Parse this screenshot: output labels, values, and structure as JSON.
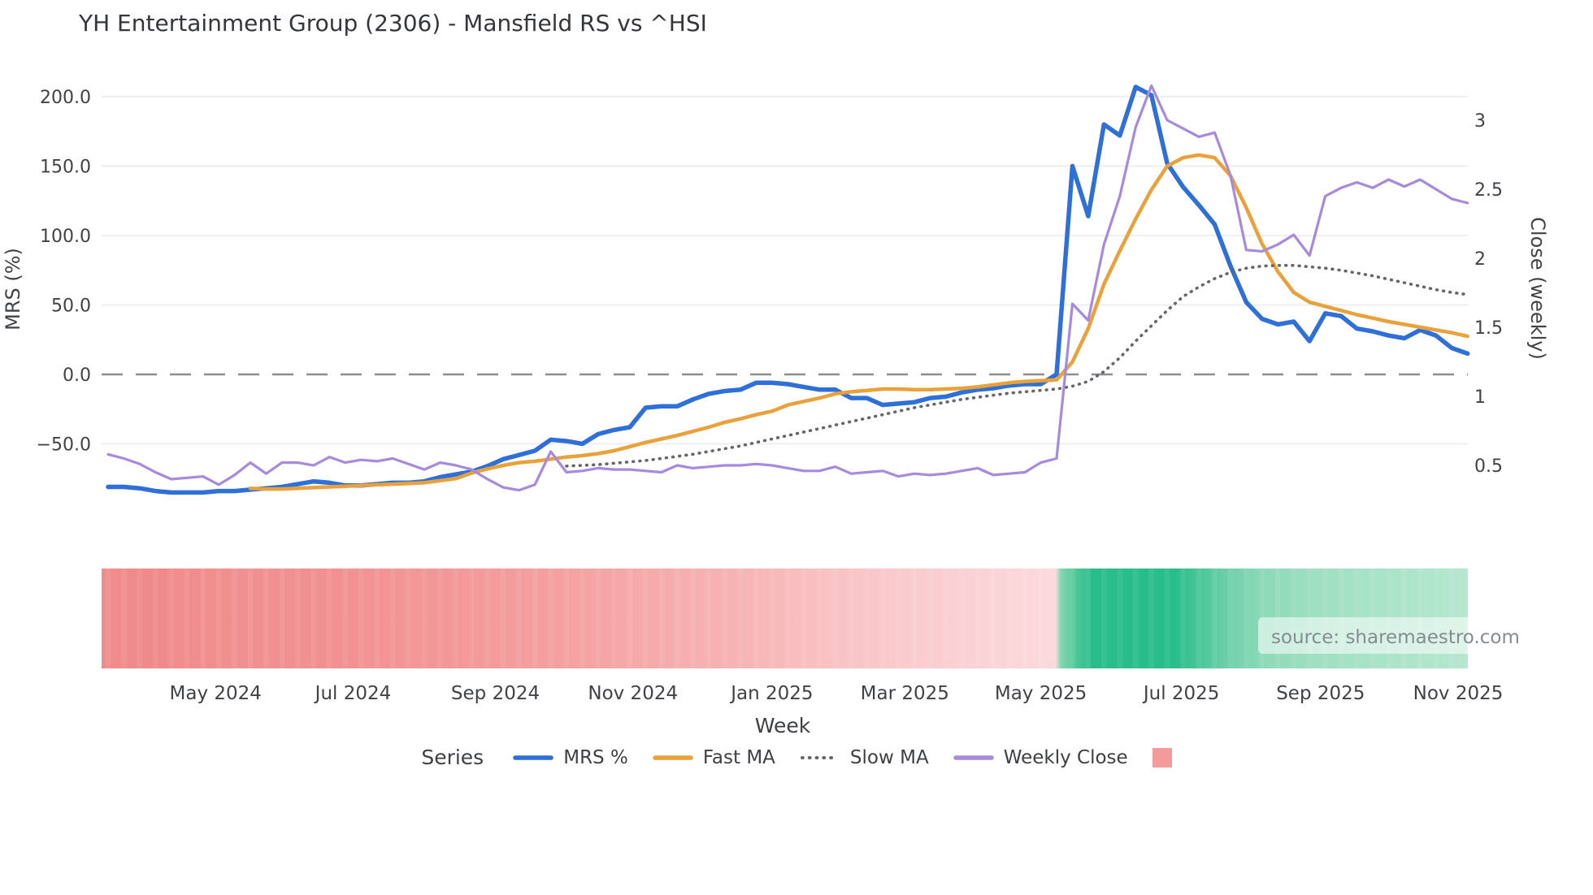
{
  "title": "YH Entertainment Group (2306) - Mansfield RS vs ^HSI",
  "source_note": "source: sharemaestro.com",
  "colors": {
    "mrs_line": "#2f6fd8",
    "fast_ma_line": "#e9a23b",
    "slow_ma_line": "#63666a",
    "weekly_close_line": "#a68ade",
    "zero_dash_line": "#8a8e93",
    "gridline": "#ebedf0",
    "tick_text": "#3f4347",
    "title_text": "#33373b",
    "source_text": "#858c91",
    "band_legend_swatch": "#f49a9a"
  },
  "legend": {
    "label": "Series",
    "items": [
      {
        "label": "MRS %",
        "swatch": "line-solid",
        "color": "#2f6fd8"
      },
      {
        "label": "Fast MA",
        "swatch": "line-solid",
        "color": "#e9a23b"
      },
      {
        "label": "Slow MA",
        "swatch": "line-dotted",
        "color": "#63666a"
      },
      {
        "label": "Weekly Close",
        "swatch": "line-solid",
        "color": "#a68ade"
      },
      {
        "label": "",
        "swatch": "square",
        "color": "#f49a9a"
      }
    ]
  },
  "chart_data": {
    "type": "line",
    "title": "YH Entertainment Group (2306) - Mansfield RS vs ^HSI",
    "xlabel": "Week",
    "x_unit": "week_index",
    "weeks": 87,
    "x_ticks": [
      {
        "label": "May 2024",
        "week": 6.8
      },
      {
        "label": "Jul 2024",
        "week": 15.5
      },
      {
        "label": "Sep 2024",
        "week": 24.5
      },
      {
        "label": "Nov 2024",
        "week": 33.2
      },
      {
        "label": "Jan 2025",
        "week": 42.0
      },
      {
        "label": "Mar 2025",
        "week": 50.4
      },
      {
        "label": "May 2025",
        "week": 59.0
      },
      {
        "label": "Jul 2025",
        "week": 67.9
      },
      {
        "label": "Sep 2025",
        "week": 76.7
      },
      {
        "label": "Nov 2025",
        "week": 85.4
      }
    ],
    "left_axis": {
      "label": "MRS (%)",
      "range": [
        -116,
        211
      ],
      "zero_reference_line": true,
      "ticks": [
        {
          "label": "200.0",
          "value": 200
        },
        {
          "label": "150.0",
          "value": 150
        },
        {
          "label": "100.0",
          "value": 100
        },
        {
          "label": "50.0",
          "value": 50
        },
        {
          "label": "0.0",
          "value": 0
        },
        {
          "label": "−50.0",
          "value": -50
        }
      ]
    },
    "right_axis": {
      "label": "Close (weekly)",
      "range": [
        0,
        3.28
      ],
      "ticks": [
        {
          "label": "3",
          "value": 3
        },
        {
          "label": "2.5",
          "value": 2.5
        },
        {
          "label": "2",
          "value": 2
        },
        {
          "label": "1.5",
          "value": 1.5
        },
        {
          "label": "1",
          "value": 1
        },
        {
          "label": "0.5",
          "value": 0.5
        }
      ]
    },
    "series": [
      {
        "name": "MRS %",
        "axis": "left",
        "style": "solid",
        "color": "#2f6fd8",
        "width": 5.5,
        "values": [
          -81,
          -81,
          -82,
          -84,
          -85,
          -85,
          -85,
          -84,
          -84,
          -83,
          -82,
          -81,
          -79,
          -77,
          -78,
          -80,
          -80,
          -79,
          -78,
          -78,
          -77,
          -74,
          -72,
          -70,
          -66,
          -61,
          -58,
          -55,
          -47,
          -48,
          -50,
          -43,
          -40,
          -38,
          -24,
          -23,
          -23,
          -18,
          -14,
          -12,
          -11,
          -6,
          -6,
          -7,
          -9,
          -11,
          -11,
          -17,
          -17,
          -22,
          -21,
          -20,
          -17,
          -16,
          -13,
          -11,
          -10,
          -8,
          -7,
          -7,
          0,
          150,
          114,
          180,
          172,
          207,
          201,
          152,
          135,
          122,
          108,
          78,
          52,
          40,
          36,
          38,
          24,
          44,
          42,
          33,
          31,
          28,
          26,
          32,
          28,
          19,
          15
        ]
      },
      {
        "name": "Fast MA",
        "axis": "left",
        "style": "solid",
        "color": "#e9a23b",
        "width": 4.5,
        "values": [
          null,
          null,
          null,
          null,
          null,
          null,
          null,
          null,
          null,
          -82,
          -82.5,
          -82.5,
          -82,
          -81.5,
          -81,
          -80.5,
          -80,
          -79.5,
          -79,
          -78.5,
          -78,
          -76.5,
          -75,
          -71,
          -68,
          -65.5,
          -63.5,
          -62.5,
          -61,
          -59.5,
          -58.5,
          -57,
          -55,
          -52,
          -49,
          -46.5,
          -44,
          -41,
          -38,
          -34.5,
          -32,
          -29,
          -26.5,
          -22,
          -19.5,
          -17,
          -14,
          -12.5,
          -11.5,
          -10.5,
          -10.5,
          -11,
          -11,
          -10.5,
          -10,
          -9,
          -7.5,
          -6,
          -5,
          -4.5,
          -4,
          9,
          33,
          65,
          89,
          112,
          133,
          150,
          156,
          158,
          156,
          143,
          120,
          94,
          74,
          59,
          52,
          49,
          46,
          43,
          40.5,
          38,
          36,
          34,
          32,
          30,
          27.5
        ]
      },
      {
        "name": "Slow MA",
        "axis": "left",
        "style": "dotted",
        "color": "#63666a",
        "width": 3.6,
        "values": [
          null,
          null,
          null,
          null,
          null,
          null,
          null,
          null,
          null,
          null,
          null,
          null,
          null,
          null,
          null,
          null,
          null,
          null,
          null,
          null,
          null,
          null,
          null,
          null,
          null,
          null,
          null,
          null,
          null,
          -66,
          -65.5,
          -65,
          -64,
          -63,
          -62,
          -60.5,
          -59,
          -57.5,
          -55.5,
          -53.5,
          -51.5,
          -49,
          -46.5,
          -44,
          -41.5,
          -39,
          -36.5,
          -34,
          -31.5,
          -29,
          -26.5,
          -24,
          -22,
          -20,
          -18,
          -16.5,
          -15,
          -13.5,
          -12.5,
          -11.5,
          -10.5,
          -8.5,
          -5,
          2,
          12,
          24,
          35,
          46,
          56,
          63,
          69,
          73.5,
          76.5,
          78,
          78.5,
          78.5,
          77.5,
          76.5,
          75,
          73,
          71,
          68.5,
          66,
          63.5,
          61,
          59,
          57.5
        ]
      },
      {
        "name": "Weekly Close",
        "axis": "right",
        "style": "solid",
        "color": "#a68ade",
        "width": 3.2,
        "values": [
          0.58,
          0.55,
          0.51,
          0.45,
          0.4,
          0.41,
          0.42,
          0.36,
          0.43,
          0.52,
          0.44,
          0.52,
          0.52,
          0.5,
          0.56,
          0.52,
          0.54,
          0.53,
          0.55,
          0.51,
          0.47,
          0.52,
          0.5,
          0.47,
          0.4,
          0.34,
          0.32,
          0.36,
          0.6,
          0.45,
          0.46,
          0.48,
          0.47,
          0.47,
          0.46,
          0.45,
          0.5,
          0.48,
          0.49,
          0.5,
          0.5,
          0.51,
          0.5,
          0.48,
          0.46,
          0.46,
          0.49,
          0.44,
          0.45,
          0.46,
          0.42,
          0.44,
          0.43,
          0.44,
          0.46,
          0.48,
          0.43,
          0.44,
          0.45,
          0.52,
          0.55,
          1.67,
          1.55,
          2.1,
          2.45,
          2.95,
          3.25,
          3.0,
          2.94,
          2.88,
          2.91,
          2.6,
          2.06,
          2.05,
          2.1,
          2.17,
          2.02,
          2.45,
          2.51,
          2.55,
          2.51,
          2.57,
          2.52,
          2.57,
          2.5,
          2.43,
          2.4
        ]
      }
    ],
    "band": {
      "description": "relative-strength heat band, red negative to green positive",
      "stops": [
        {
          "pos": 0,
          "color": "#f18c8c"
        },
        {
          "pos": 4,
          "color": "#f08a8a"
        },
        {
          "pos": 10,
          "color": "#f19090"
        },
        {
          "pos": 16,
          "color": "#f19090"
        },
        {
          "pos": 22,
          "color": "#f29595"
        },
        {
          "pos": 28,
          "color": "#f39a9a"
        },
        {
          "pos": 34,
          "color": "#f4a1a1"
        },
        {
          "pos": 40,
          "color": "#f5aaaa"
        },
        {
          "pos": 46,
          "color": "#f6b3b4"
        },
        {
          "pos": 52,
          "color": "#f8bfc0"
        },
        {
          "pos": 57,
          "color": "#f9c8ca"
        },
        {
          "pos": 62,
          "color": "#facfd2"
        },
        {
          "pos": 66,
          "color": "#fad5d8"
        },
        {
          "pos": 69.8,
          "color": "#fbd9dc"
        },
        {
          "pos": 70.2,
          "color": "#84d6b0"
        },
        {
          "pos": 71.3,
          "color": "#4ec79a"
        },
        {
          "pos": 72.5,
          "color": "#2abd8b"
        },
        {
          "pos": 78.5,
          "color": "#28bd8b"
        },
        {
          "pos": 80.5,
          "color": "#4cc79a"
        },
        {
          "pos": 82.5,
          "color": "#6fd0a9"
        },
        {
          "pos": 85,
          "color": "#8cd9b8"
        },
        {
          "pos": 89,
          "color": "#9fdfc2"
        },
        {
          "pos": 94,
          "color": "#a9e3c8"
        },
        {
          "pos": 100,
          "color": "#b5e7cf"
        }
      ]
    }
  }
}
